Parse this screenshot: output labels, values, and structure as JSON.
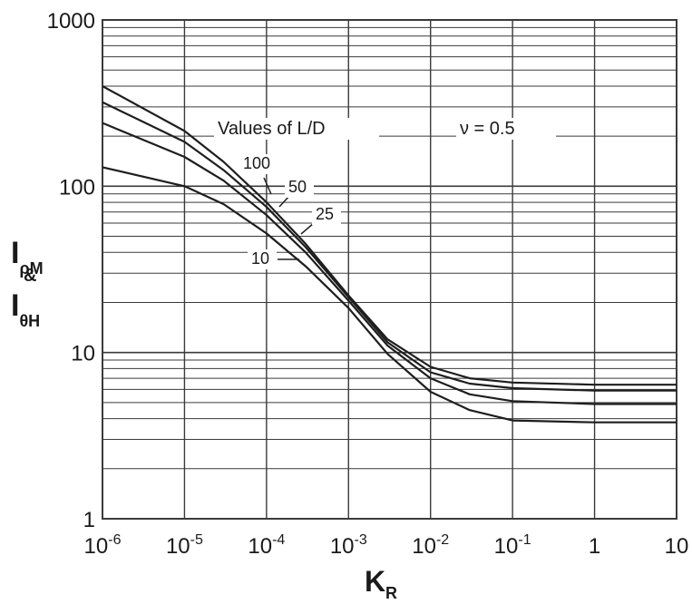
{
  "chart_data": {
    "type": "line",
    "title": "",
    "xlabel": {
      "main": "K",
      "sub": "R"
    },
    "ylabel": {
      "line1": {
        "main": "I",
        "sub": "ρM"
      },
      "amp": "&",
      "line2": {
        "main": "I",
        "sub": "θH"
      }
    },
    "x_scale": "log",
    "y_scale": "log",
    "xlim": [
      1e-06,
      10
    ],
    "ylim": [
      1,
      1000
    ],
    "grid": true,
    "x_ticks": [
      {
        "value": 1e-06,
        "base": "10",
        "exp": "-6"
      },
      {
        "value": 1e-05,
        "base": "10",
        "exp": "-5"
      },
      {
        "value": 0.0001,
        "base": "10",
        "exp": "-4"
      },
      {
        "value": 0.001,
        "base": "10",
        "exp": "-3"
      },
      {
        "value": 0.01,
        "base": "10",
        "exp": "-2"
      },
      {
        "value": 0.1,
        "base": "10",
        "exp": "-1"
      },
      {
        "value": 1,
        "base": "1",
        "exp": ""
      },
      {
        "value": 10,
        "base": "10",
        "exp": ""
      }
    ],
    "y_ticks": [
      {
        "value": 1,
        "label": "1"
      },
      {
        "value": 10,
        "label": "10"
      },
      {
        "value": 100,
        "label": "100"
      },
      {
        "value": 1000,
        "label": "1000"
      }
    ],
    "legend_title": "Values of L/D",
    "annotation": "ν = 0.5",
    "series": [
      {
        "name": "100",
        "x": [
          1e-06,
          1e-05,
          3e-05,
          0.0001,
          0.0003,
          0.001,
          0.003,
          0.01,
          0.03,
          0.1,
          1,
          10
        ],
        "y": [
          400,
          215,
          140,
          80,
          45,
          22,
          12,
          8.2,
          7,
          6.6,
          6.4,
          6.4
        ]
      },
      {
        "name": "50",
        "x": [
          1e-06,
          1e-05,
          3e-05,
          0.0001,
          0.0003,
          0.001,
          0.003,
          0.01,
          0.03,
          0.1,
          1,
          10
        ],
        "y": [
          320,
          185,
          125,
          75,
          43,
          21.5,
          11.5,
          7.6,
          6.5,
          6.1,
          5.9,
          5.9
        ]
      },
      {
        "name": "25",
        "x": [
          1e-06,
          1e-05,
          3e-05,
          0.0001,
          0.0003,
          0.001,
          0.003,
          0.01,
          0.03,
          0.1,
          1,
          10
        ],
        "y": [
          240,
          150,
          108,
          67,
          40,
          20.5,
          11,
          7,
          5.6,
          5.1,
          4.9,
          4.9
        ]
      },
      {
        "name": "10",
        "x": [
          1e-06,
          1e-05,
          3e-05,
          0.0001,
          0.0003,
          0.001,
          0.003,
          0.01,
          0.03,
          0.1,
          1,
          10
        ],
        "y": [
          130,
          100,
          78,
          52,
          33,
          18.5,
          9.8,
          5.8,
          4.5,
          3.9,
          3.8,
          3.8
        ]
      }
    ]
  }
}
